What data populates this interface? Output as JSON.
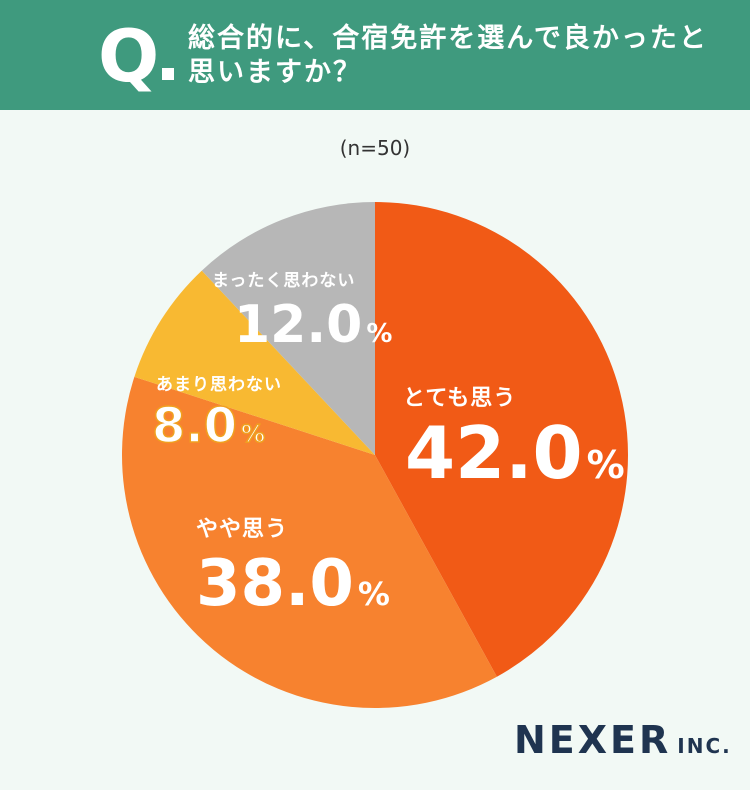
{
  "header": {
    "q_mark": "Q",
    "question": "総合的に、合宿免許を選んで良かったと思いますか？"
  },
  "sample_label": "(n=50)",
  "chart_data": {
    "type": "pie",
    "title": "総合的に、合宿免許を選んで良かったと思いますか？",
    "sample": "(n=50)",
    "unit": "%",
    "slices": [
      {
        "label": "とても思う",
        "value": 42.0,
        "display": "42.0",
        "color": "#f15a16"
      },
      {
        "label": "やや思う",
        "value": 38.0,
        "display": "38.0",
        "color": "#f7822f"
      },
      {
        "label": "あまり思わない",
        "value": 8.0,
        "display": "8.0",
        "color": "#f8b932"
      },
      {
        "label": "まったく思わない",
        "value": 12.0,
        "display": "12.0",
        "color": "#b7b7b7"
      }
    ]
  },
  "brand": {
    "name": "NEXER",
    "suffix": "INC."
  }
}
